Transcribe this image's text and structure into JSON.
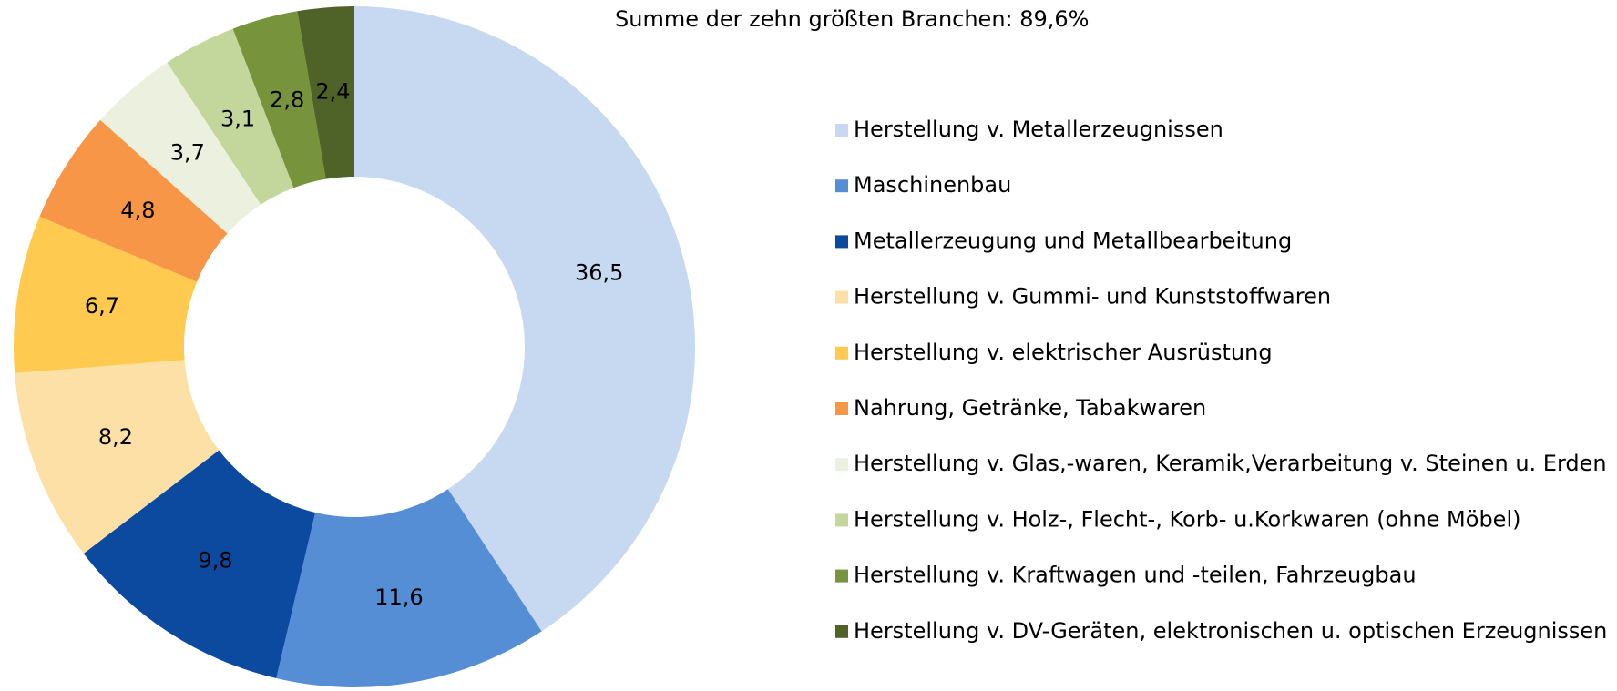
{
  "chart_data": {
    "type": "donut",
    "title": "Summe der zehn größten Branchen:   89,6%",
    "categories": [
      "Herstellung v. Metallerzeugnissen",
      "Maschinenbau",
      "Metallerzeugung und Metallbearbeitung",
      "Herstellung v. Gummi- und Kunststoffwaren",
      "Herstellung v. elektrischer Ausrüstung",
      "Nahrung, Getränke, Tabakwaren",
      "Herstellung v. Glas,-waren, Keramik,Verarbeitung v. Steinen u. Erden",
      "Herstellung v. Holz-, Flecht-, Korb- u.Korkwaren (ohne Möbel)",
      "Herstellung v. Kraftwagen und -teilen, Fahrzeugbau",
      "Herstellung v. DV-Geräten, elektronischen u. optischen Erzeugnissen"
    ],
    "values": [
      36.5,
      11.6,
      9.8,
      8.2,
      6.7,
      4.8,
      3.7,
      3.1,
      2.8,
      2.4
    ],
    "value_labels": [
      "36,5",
      "11,6",
      "9,8",
      "8,2",
      "6,7",
      "4,8",
      "3,7",
      "3,1",
      "2,8",
      "2,4"
    ],
    "colors": [
      "#c6d9f1",
      "#558ed5",
      "#0b4a9e",
      "#fde0a6",
      "#ffca4f",
      "#f79646",
      "#ebf1de",
      "#c3d69b",
      "#77933c",
      "#4f6228"
    ],
    "legend": "right"
  }
}
